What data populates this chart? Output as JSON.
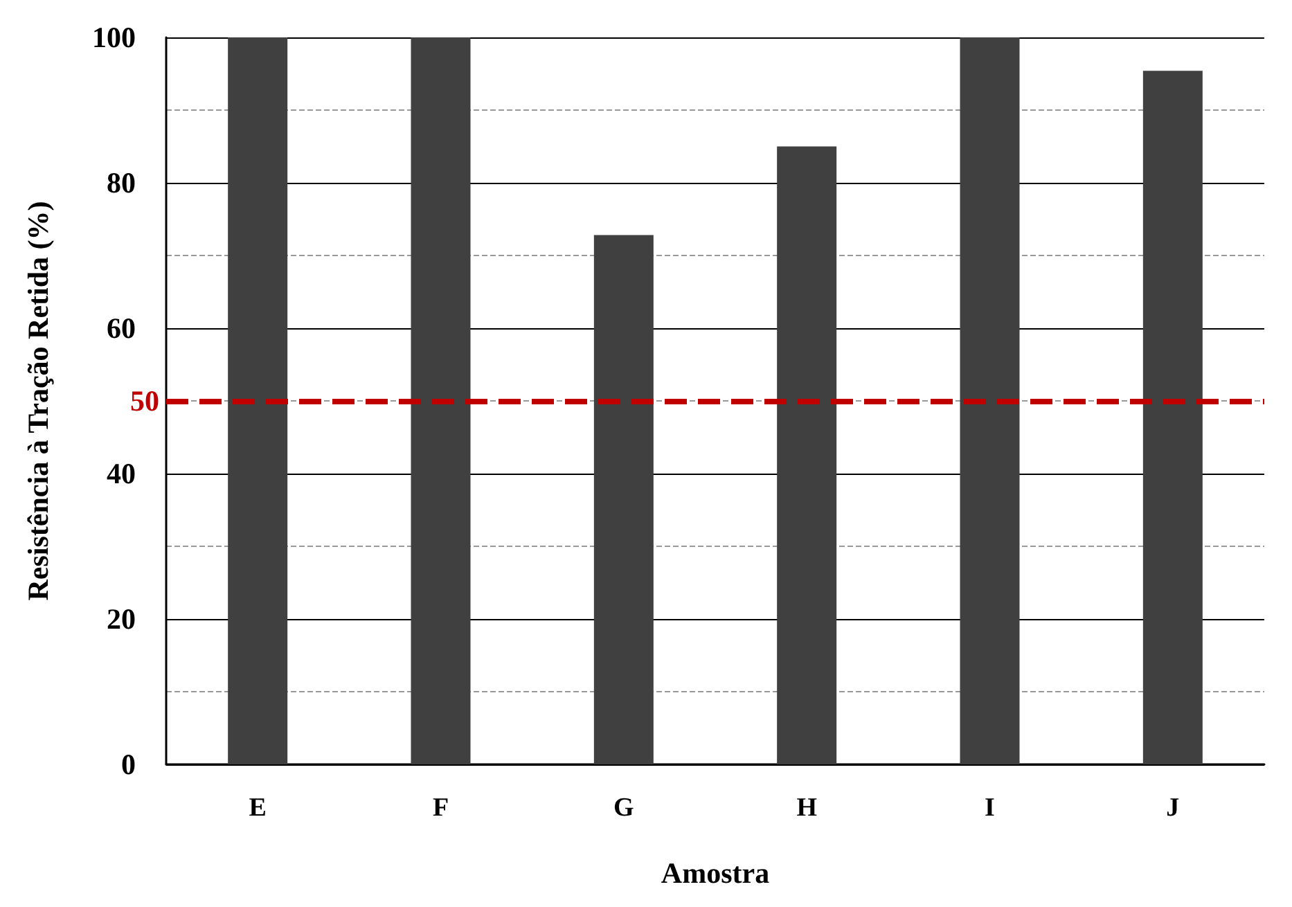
{
  "chart_data": {
    "type": "bar",
    "xlabel": "Amostra",
    "ylabel": "Resistência à Tração Retida (%)",
    "categories": [
      "E",
      "F",
      "G",
      "H",
      "I",
      "J"
    ],
    "values": [
      100,
      100,
      72.8,
      85,
      100,
      95.4
    ],
    "color": "#404040",
    "ylim": [
      0,
      100
    ],
    "yticks": [
      0,
      {
        "value": 10,
        "label": null
      },
      20,
      {
        "value": 30,
        "label": null
      },
      40,
      {
        "value": 50,
        "label": null
      },
      60,
      {
        "value": 70,
        "label": null
      },
      80,
      {
        "value": 90,
        "label": null
      },
      100
    ],
    "grid": "y",
    "ref_lines": [
      {
        "axis": "y",
        "value": 50,
        "label": "50",
        "color": "#c00000",
        "line_style": "dashed"
      }
    ]
  }
}
